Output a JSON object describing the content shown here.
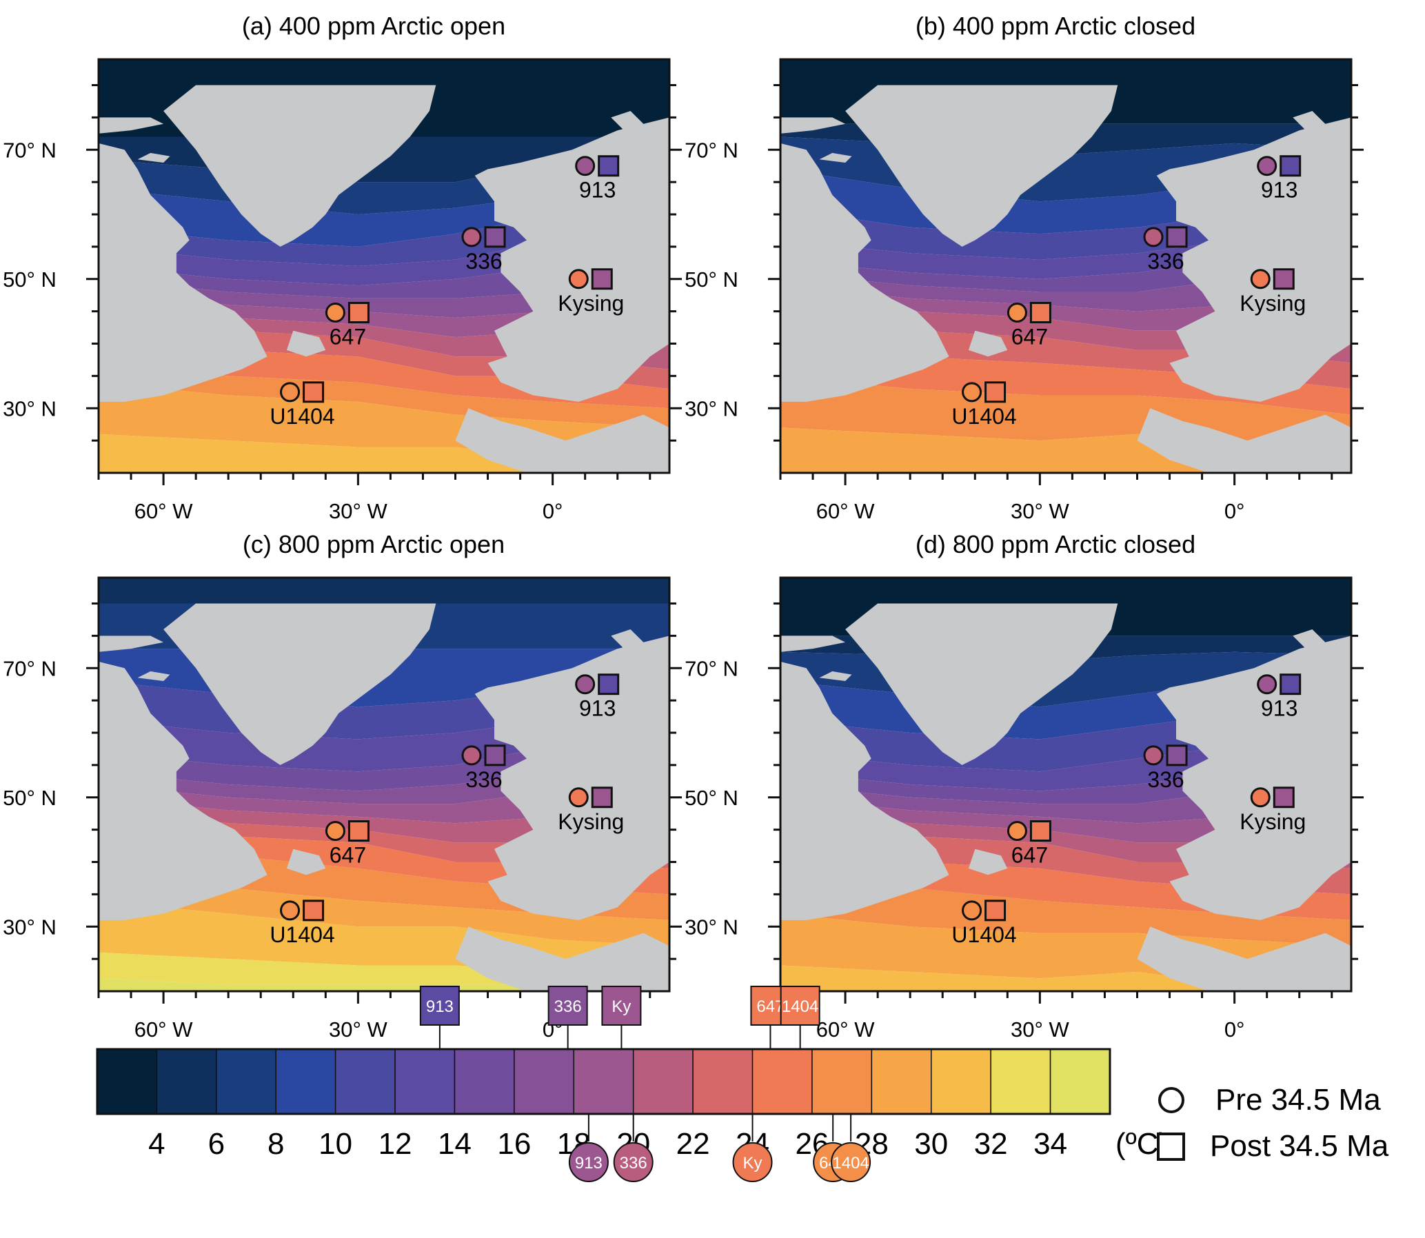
{
  "figure": {
    "unit_label": "(ºC)",
    "colorbar_ticks": [
      "4",
      "6",
      "8",
      "10",
      "12",
      "14",
      "16",
      "18",
      "20",
      "22",
      "24",
      "26",
      "28",
      "30",
      "32",
      "34"
    ],
    "colorbar_colors": [
      "#04213a",
      "#0f2f5c",
      "#1a3d7e",
      "#2a47a1",
      "#4a4aa2",
      "#5d4ba3",
      "#714e9d",
      "#865297",
      "#9d5790",
      "#b85d7e",
      "#d6686a",
      "#ef7a54",
      "#f48f4a",
      "#f6a646",
      "#f6bb48",
      "#ecdc5c",
      "#e0e062"
    ],
    "land_color": "#c8c9cb",
    "lat_labels": [
      "70° N",
      "50° N",
      "30° N"
    ],
    "lon_labels": [
      "60° W",
      "30° W",
      "0°"
    ]
  },
  "panels": [
    {
      "title": "(a) 400 ppm Arctic open"
    },
    {
      "title": "(b) 400 ppm Arctic closed"
    },
    {
      "title": "(c) 800 ppm Arctic open"
    },
    {
      "title": "(d) 800 ppm Arctic closed"
    }
  ],
  "sites": [
    {
      "label": "913",
      "lon": 5.0,
      "lat": 67.5,
      "pre_c": 18.5,
      "post_c": 13.5
    },
    {
      "label": "336",
      "lon": -12.5,
      "lat": 56.5,
      "pre_c": 20.0,
      "post_c": 17.8
    },
    {
      "label": "Kysing",
      "lon": 4.0,
      "lat": 50.0,
      "pre_c": 24.0,
      "post_c": 19.6
    },
    {
      "label": "647",
      "lon": -33.5,
      "lat": 44.8,
      "pre_c": 26.7,
      "post_c": 24.6
    },
    {
      "label": "U1404",
      "lon": -40.5,
      "lat": 32.5,
      "pre_c": 27.3,
      "post_c": 25.6
    }
  ],
  "colorbar_markers_post": [
    {
      "label": "913",
      "value_c": 13.5
    },
    {
      "label": "336",
      "value_c": 17.8
    },
    {
      "label": "Ky",
      "value_c": 19.6
    },
    {
      "label": "647",
      "value_c": 24.6
    },
    {
      "label": "1404",
      "value_c": 25.6
    }
  ],
  "colorbar_markers_pre": [
    {
      "label": "913",
      "value_c": 18.5
    },
    {
      "label": "336",
      "value_c": 20.0
    },
    {
      "label": "Ky",
      "value_c": 24.0
    },
    {
      "label": "647",
      "value_c": 26.7
    },
    {
      "label": "1404",
      "value_c": 27.3
    }
  ],
  "legend": {
    "pre_label": "Pre 34.5 Ma",
    "post_label": "Post 34.5 Ma"
  }
}
